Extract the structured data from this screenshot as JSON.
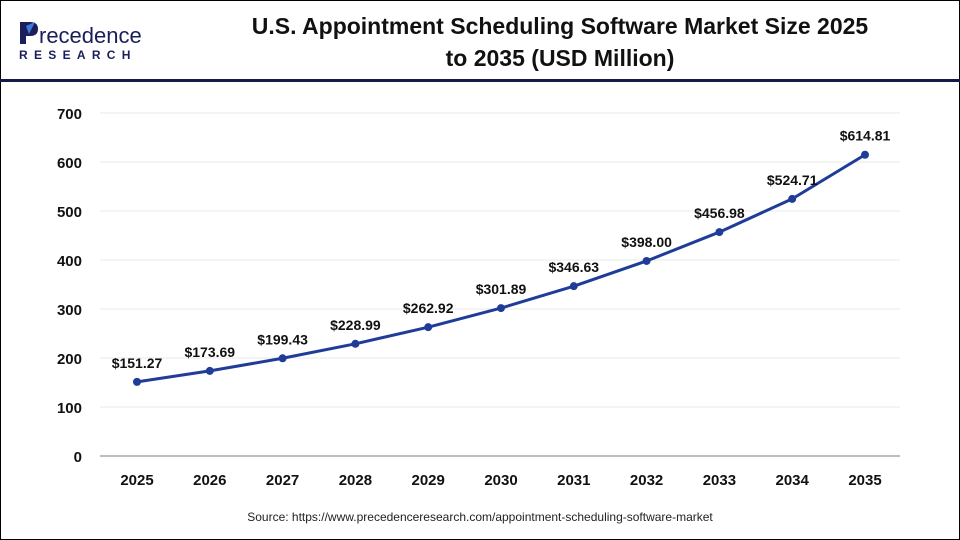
{
  "brand": {
    "logo_text": "Precedence",
    "logo_subtext": "RESEARCH"
  },
  "title_line1": "U.S. Appointment Scheduling Software Market Size 2025",
  "title_line2": "to 2035 (USD Million)",
  "source": "Source: https://www.precedenceresearch.com/appointment-scheduling-software-market",
  "colors": {
    "line": "#1f3c99",
    "marker": "#1f3c99",
    "header_rule": "#141a4a",
    "gridline": "#e8e8e8",
    "axis": "#bdbdbd"
  },
  "chart_data": {
    "type": "line",
    "title": "U.S. Appointment Scheduling Software Market Size 2025 to 2035 (USD Million)",
    "xlabel": "",
    "ylabel": "",
    "categories": [
      "2025",
      "2026",
      "2027",
      "2028",
      "2029",
      "2030",
      "2031",
      "2032",
      "2033",
      "2034",
      "2035"
    ],
    "values": [
      151.27,
      173.69,
      199.43,
      228.99,
      262.92,
      301.89,
      346.63,
      398.0,
      456.98,
      524.71,
      614.81
    ],
    "data_labels": [
      "$151.27",
      "$173.69",
      "$199.43",
      "$228.99",
      "$262.92",
      "$301.89",
      "$346.63",
      "$398.00",
      "$456.98",
      "$524.71",
      "$614.81"
    ],
    "ylim": [
      0,
      700
    ],
    "yticks": [
      0,
      100,
      200,
      300,
      400,
      500,
      600,
      700
    ],
    "grid": true,
    "legend": "none"
  }
}
